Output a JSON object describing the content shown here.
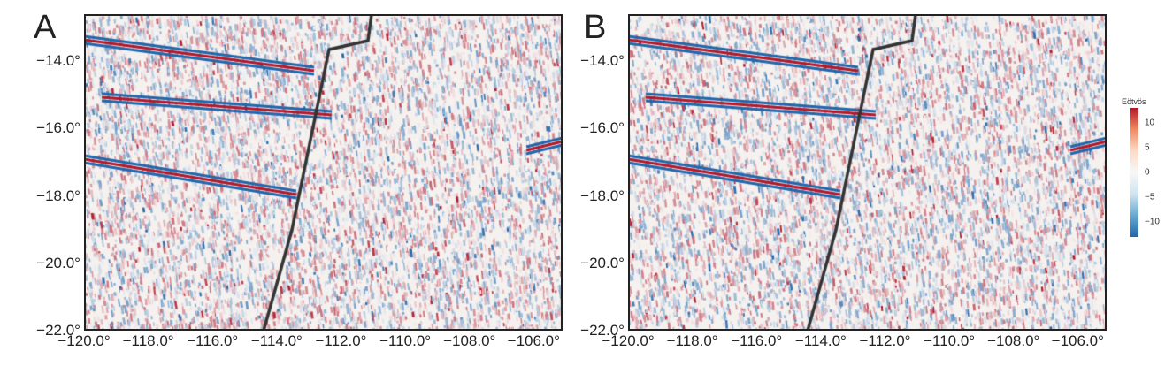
{
  "panels": [
    {
      "label": "A"
    },
    {
      "label": "B"
    }
  ],
  "chart_data": {
    "type": "heatmap",
    "title": "",
    "xlim": [
      -120,
      -105.1
    ],
    "ylim": [
      -22,
      -12.6
    ],
    "x_ticks": [
      -120,
      -118,
      -116,
      -114,
      -112,
      -110,
      -108,
      -106
    ],
    "x_tick_labels": [
      "−120.0°",
      "−118.0°",
      "−116.0°",
      "−114.0°",
      "−112.0°",
      "−110.0°",
      "−108.0°",
      "−106.0°"
    ],
    "y_ticks": [
      -14,
      -16,
      -18,
      -20,
      -22
    ],
    "y_tick_labels": [
      "−14.0°",
      "−16.0°",
      "−18.0°",
      "−20.0°",
      "−22.0°"
    ],
    "colorbar": {
      "title": "Eötvös",
      "range": [
        -13,
        13
      ],
      "ticks": [
        10,
        5,
        0,
        -5,
        -10
      ],
      "tick_labels": [
        "10",
        "5",
        "0",
        "−5",
        "−10"
      ],
      "colors": [
        "#2166ac",
        "#f7f7f7",
        "#b2182b"
      ]
    }
  }
}
